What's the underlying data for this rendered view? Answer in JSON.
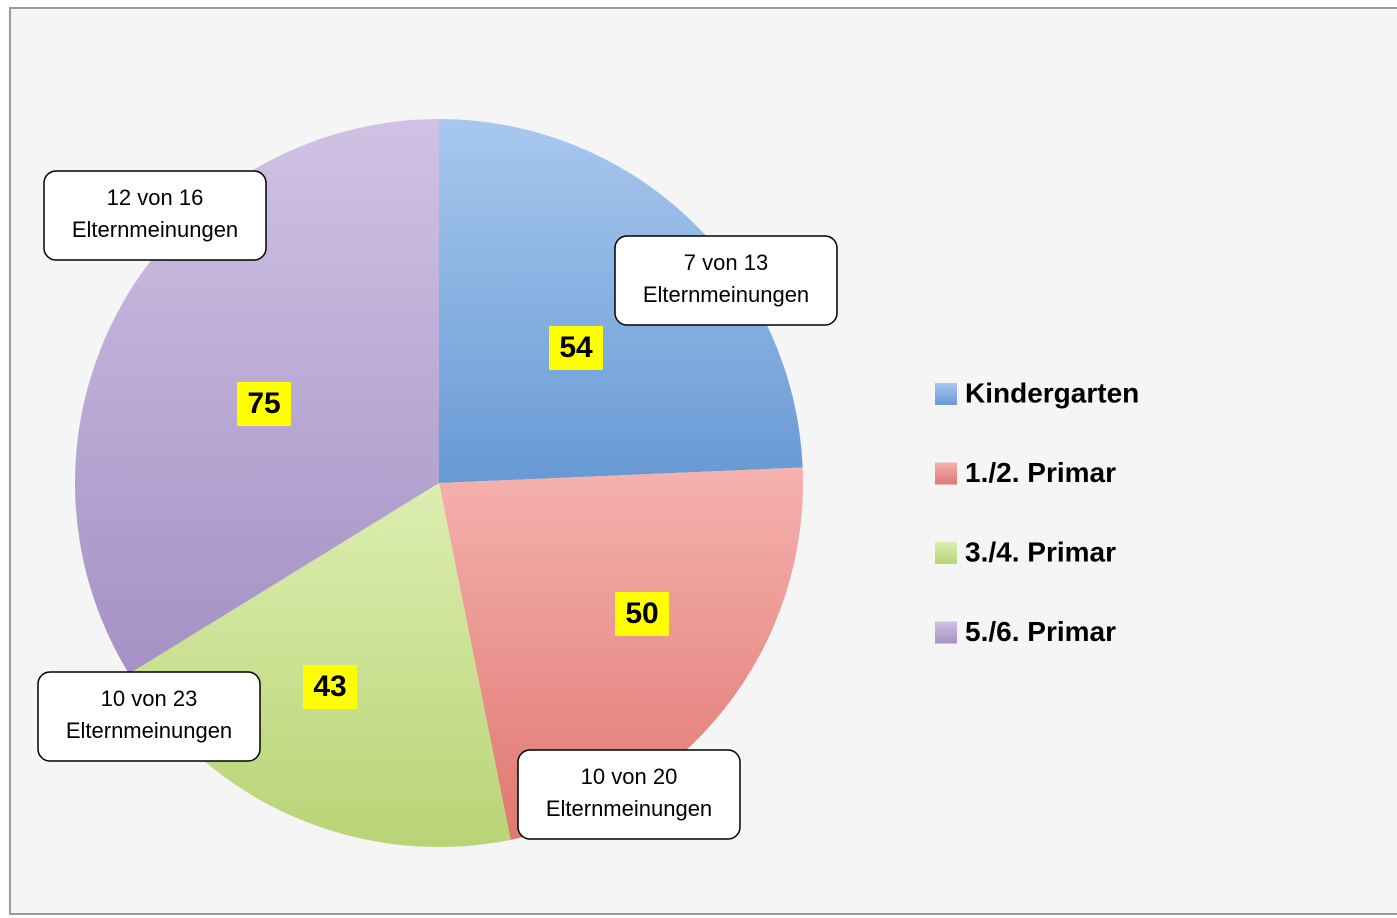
{
  "chart_data": {
    "type": "pie",
    "categories": [
      "Kindergarten",
      "1./2. Primar",
      "3./4. Primar",
      "5./6. Primar"
    ],
    "values": [
      54,
      50,
      43,
      75
    ],
    "colors": [
      "#6ea3e2",
      "#ee7f78",
      "#c4e27c",
      "#b09ad2"
    ],
    "annotations": [
      [
        "7 von 13",
        "Elternmeinungen"
      ],
      [
        "10 von 20",
        "Elternmeinungen"
      ],
      [
        "10 von 23",
        "Elternmeinungen"
      ],
      [
        "12 von 16",
        "Elternmeinungen"
      ]
    ],
    "legend": "right"
  }
}
